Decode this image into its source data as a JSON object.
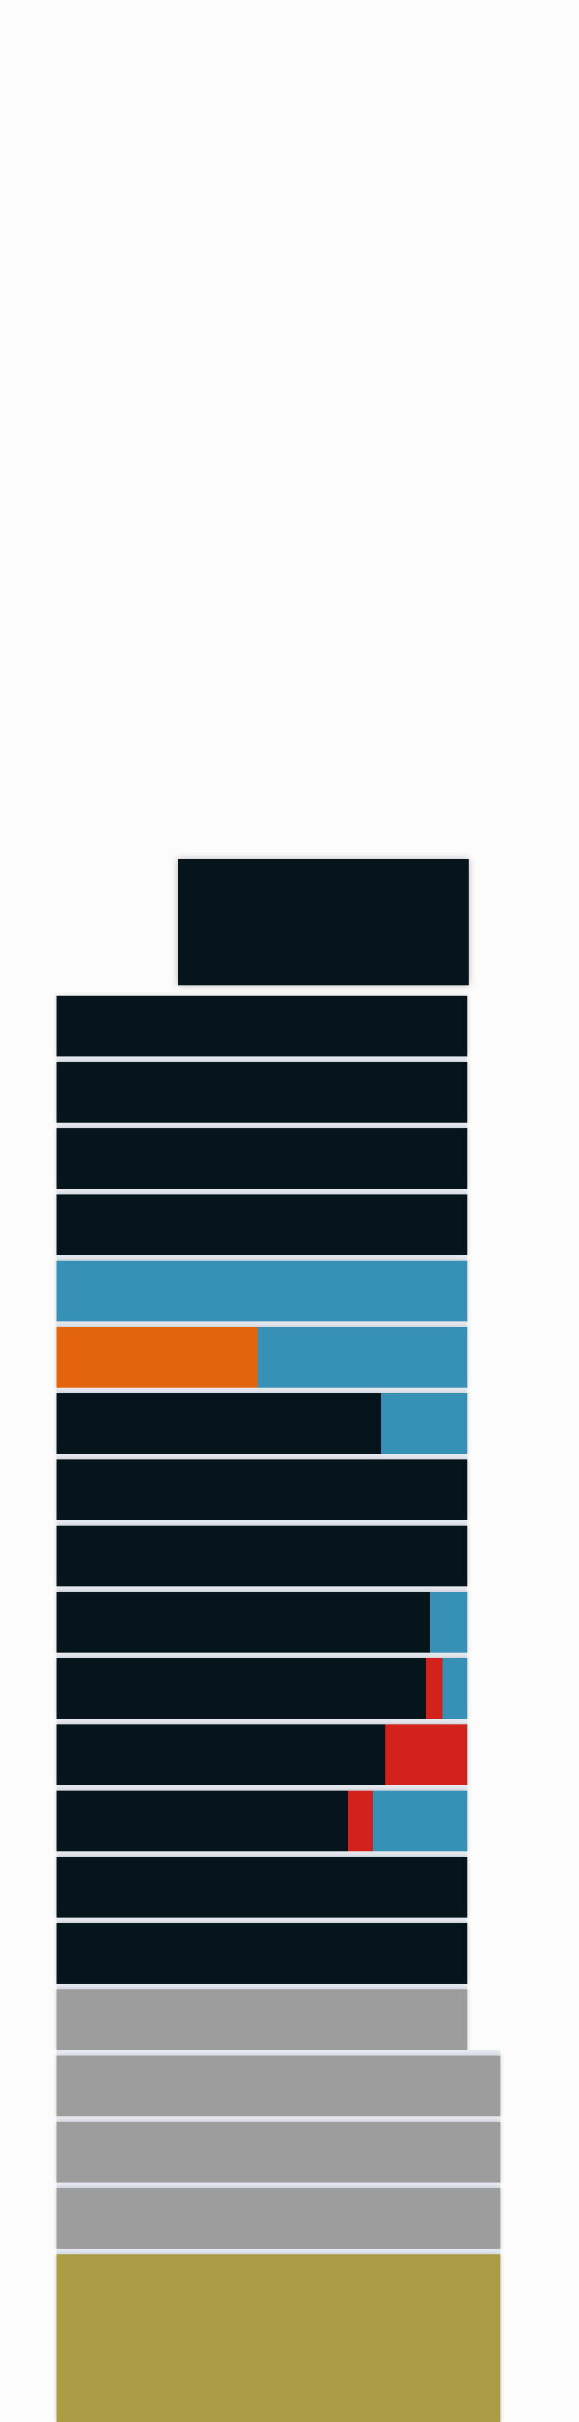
{
  "colors": {
    "background": "#fcfcfc",
    "dark": "#06151b",
    "blue": "#3790b5",
    "orange": "#e2640c",
    "red": "#d3221b",
    "gray": "#9d9d9d",
    "olive": "#ab9c46",
    "separator": "#e6e8f0"
  },
  "rows": [
    {
      "segments": [
        {
          "color": "dark",
          "share": 1.0
        }
      ]
    },
    {
      "segments": [
        {
          "color": "dark",
          "share": 1.0
        }
      ]
    },
    {
      "segments": [
        {
          "color": "dark",
          "share": 1.0
        }
      ]
    },
    {
      "segments": [
        {
          "color": "dark",
          "share": 1.0
        }
      ]
    },
    {
      "segments": [
        {
          "color": "blue",
          "share": 1.0
        }
      ]
    },
    {
      "segments": [
        {
          "color": "orange",
          "share": 0.49
        },
        {
          "color": "blue",
          "share": 0.51
        }
      ]
    },
    {
      "segments": [
        {
          "color": "dark",
          "share": 0.79
        },
        {
          "color": "blue",
          "share": 0.21
        }
      ]
    },
    {
      "segments": [
        {
          "color": "dark",
          "share": 1.0
        }
      ]
    },
    {
      "segments": [
        {
          "color": "dark",
          "share": 1.0
        }
      ]
    },
    {
      "segments": [
        {
          "color": "dark",
          "share": 0.91
        },
        {
          "color": "blue",
          "share": 0.09
        }
      ]
    },
    {
      "segments": [
        {
          "color": "dark",
          "share": 0.9
        },
        {
          "color": "red",
          "share": 0.04
        },
        {
          "color": "blue",
          "share": 0.06
        }
      ]
    },
    {
      "segments": [
        {
          "color": "dark",
          "share": 0.8
        },
        {
          "color": "red",
          "share": 0.2
        }
      ]
    },
    {
      "segments": [
        {
          "color": "dark",
          "share": 0.71
        },
        {
          "color": "red",
          "share": 0.06
        },
        {
          "color": "blue",
          "share": 0.23
        }
      ]
    },
    {
      "segments": [
        {
          "color": "dark",
          "share": 1.0
        }
      ]
    },
    {
      "segments": [
        {
          "color": "dark",
          "share": 1.0
        }
      ]
    },
    {
      "segments": [
        {
          "color": "gray",
          "share": 1.0
        }
      ]
    },
    {
      "segments": [
        {
          "color": "gray",
          "share": 1.0
        }
      ]
    },
    {
      "segments": [
        {
          "color": "gray",
          "share": 1.0
        }
      ]
    },
    {
      "segments": [
        {
          "color": "gray",
          "share": 1.0
        }
      ]
    },
    {
      "segments": [
        {
          "color": "olive",
          "share": 1.0
        }
      ]
    }
  ]
}
